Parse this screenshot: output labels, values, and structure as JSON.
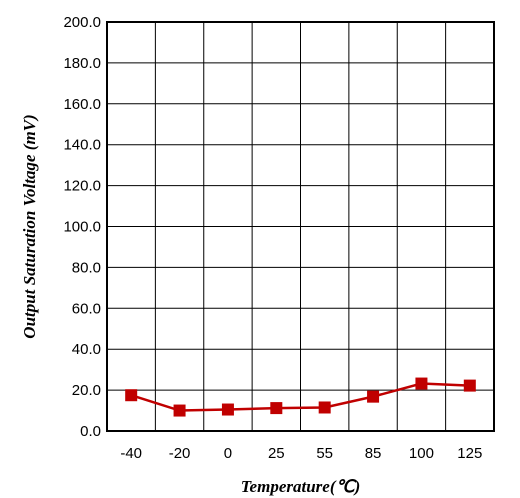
{
  "chart_data": {
    "type": "line",
    "title": "",
    "xlabel": "Temperature(℃)",
    "ylabel": "Output Saturation Voltage (mV)",
    "categories": [
      "-40",
      "-20",
      "0",
      "25",
      "55",
      "85",
      "100",
      "125"
    ],
    "series": [
      {
        "values": [
          17.5,
          10.0,
          10.5,
          11.2,
          11.5,
          16.8,
          23.2,
          22.2
        ],
        "color": "#C00000",
        "marker": "square"
      }
    ],
    "ylim": [
      0,
      200
    ],
    "yticks": [
      "0.0",
      "20.0",
      "40.0",
      "60.0",
      "80.0",
      "100.0",
      "120.0",
      "140.0",
      "160.0",
      "180.0",
      "200.0"
    ],
    "grid": true,
    "legend": "none"
  }
}
